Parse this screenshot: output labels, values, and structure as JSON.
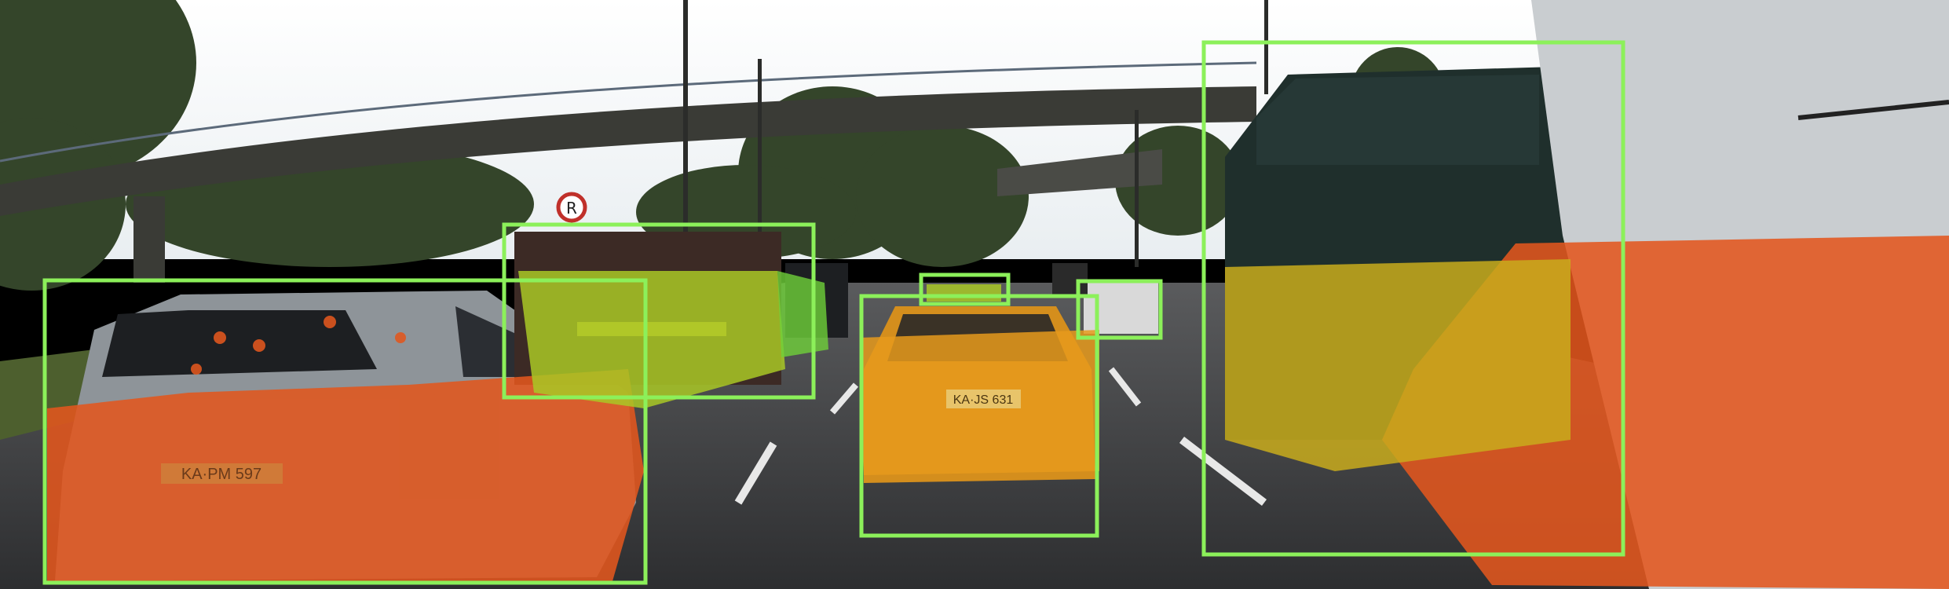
{
  "image": {
    "kind": "driving-scene-detection-overlay",
    "colors": {
      "box_outline": "#8cf05a",
      "near_points": "#e2571e",
      "mid_points": "#f0a31c",
      "far_points": "#b5d31b",
      "green_points": "#6fd13a",
      "sky": "#f3f6f8",
      "road": "#3e3f42",
      "trees": "#37472a",
      "bridge": "#3a3b36"
    }
  },
  "plates": {
    "left_car": "KA·PM 597",
    "center_car": "KA·JS 631"
  },
  "sign": {
    "no_turn_symbol": "R"
  },
  "detections": [
    {
      "label": "car-left"
    },
    {
      "label": "truck-center-left"
    },
    {
      "label": "car-center"
    },
    {
      "label": "car-far-center"
    },
    {
      "label": "car-far-right"
    },
    {
      "label": "truck-right"
    }
  ]
}
